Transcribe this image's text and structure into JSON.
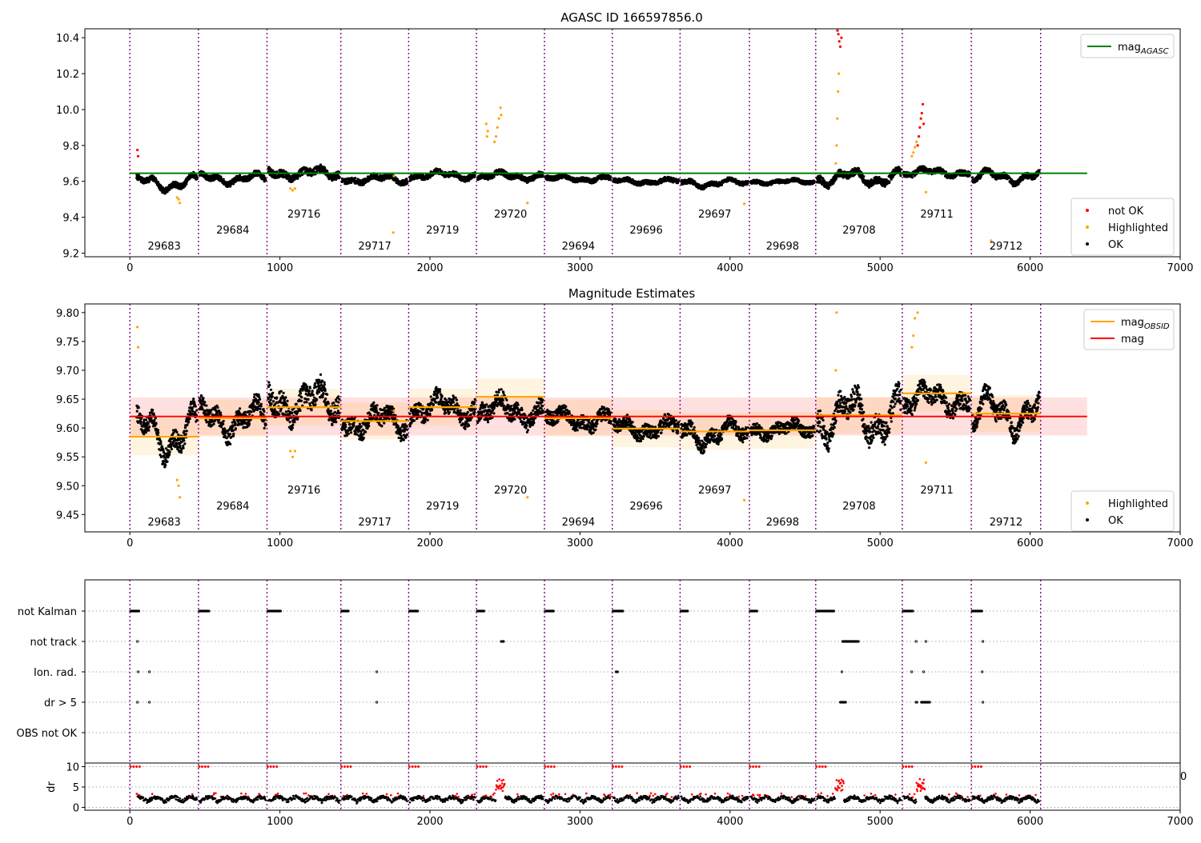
{
  "chart_data": [
    {
      "type": "scatter",
      "title": "AGASC ID 166597856.0",
      "xlim": [
        -300,
        7000
      ],
      "ylim": [
        9.18,
        10.45
      ],
      "xticks": [
        0,
        1000,
        2000,
        3000,
        4000,
        5000,
        6000,
        7000
      ],
      "yticks": [
        9.2,
        9.4,
        9.6,
        9.8,
        10.0,
        10.2,
        10.4
      ],
      "xlabel": "",
      "ylabel": "",
      "obs_boundaries": [
        0,
        457,
        914,
        1406,
        1858,
        2310,
        2763,
        3215,
        3667,
        4129,
        4571,
        5148,
        5608,
        6070
      ],
      "obs_labels": [
        {
          "text": "29683",
          "x": 229,
          "row": 0
        },
        {
          "text": "29684",
          "x": 686,
          "row": 1
        },
        {
          "text": "29716",
          "x": 1160,
          "row": 2
        },
        {
          "text": "29717",
          "x": 1632,
          "row": 0
        },
        {
          "text": "29719",
          "x": 2084,
          "row": 1
        },
        {
          "text": "29720",
          "x": 2537,
          "row": 2
        },
        {
          "text": "29694",
          "x": 2989,
          "row": 0
        },
        {
          "text": "29696",
          "x": 3441,
          "row": 1
        },
        {
          "text": "29697",
          "x": 3898,
          "row": 2
        },
        {
          "text": "29698",
          "x": 4350,
          "row": 0
        },
        {
          "text": "29708",
          "x": 4860,
          "row": 1
        },
        {
          "text": "29711",
          "x": 5378,
          "row": 2
        },
        {
          "text": "29712",
          "x": 5839,
          "row": 0
        }
      ],
      "mag_agasc": 9.645,
      "base_segments": [
        {
          "x0": 0,
          "x1": 457,
          "mag": 9.59,
          "amp": 0.03,
          "noise": 0.015
        },
        {
          "x0": 457,
          "x1": 914,
          "mag": 9.615,
          "amp": 0.02,
          "noise": 0.015
        },
        {
          "x0": 914,
          "x1": 1406,
          "mag": 9.645,
          "amp": 0.02,
          "noise": 0.02
        },
        {
          "x0": 1406,
          "x1": 1858,
          "mag": 9.612,
          "amp": 0.015,
          "noise": 0.015
        },
        {
          "x0": 1858,
          "x1": 2310,
          "mag": 9.635,
          "amp": 0.015,
          "noise": 0.015
        },
        {
          "x0": 2310,
          "x1": 2763,
          "mag": 9.63,
          "amp": 0.015,
          "noise": 0.015
        },
        {
          "x0": 2763,
          "x1": 3215,
          "mag": 9.615,
          "amp": 0.01,
          "noise": 0.012
        },
        {
          "x0": 3215,
          "x1": 3667,
          "mag": 9.6,
          "amp": 0.01,
          "noise": 0.012
        },
        {
          "x0": 3667,
          "x1": 4129,
          "mag": 9.59,
          "amp": 0.015,
          "noise": 0.012
        },
        {
          "x0": 4129,
          "x1": 4571,
          "mag": 9.597,
          "amp": 0.008,
          "noise": 0.01
        },
        {
          "x0": 4571,
          "x1": 5148,
          "mag": 9.62,
          "amp": 0.03,
          "noise": 0.02
        },
        {
          "x0": 5148,
          "x1": 5608,
          "mag": 9.65,
          "amp": 0.015,
          "noise": 0.015
        },
        {
          "x0": 5608,
          "x1": 6070,
          "mag": 9.625,
          "amp": 0.025,
          "noise": 0.015
        }
      ],
      "not_ok_points": [
        [
          50,
          9.775
        ],
        [
          55,
          9.74
        ],
        [
          4716,
          10.44
        ],
        [
          4722,
          10.42
        ],
        [
          4728,
          10.38
        ],
        [
          4735,
          10.35
        ],
        [
          4742,
          10.4
        ],
        [
          5250,
          9.8
        ],
        [
          5258,
          9.85
        ],
        [
          5265,
          9.9
        ],
        [
          5272,
          9.95
        ],
        [
          5278,
          9.98
        ],
        [
          5285,
          10.03
        ],
        [
          5290,
          9.92
        ]
      ],
      "highlighted_points": [
        [
          315,
          9.51
        ],
        [
          325,
          9.5
        ],
        [
          333,
          9.48
        ],
        [
          1070,
          9.56
        ],
        [
          1085,
          9.55
        ],
        [
          1100,
          9.56
        ],
        [
          1755,
          9.315
        ],
        [
          1760,
          9.63
        ],
        [
          2375,
          9.92
        ],
        [
          2380,
          9.85
        ],
        [
          2385,
          9.88
        ],
        [
          2430,
          9.82
        ],
        [
          2440,
          9.85
        ],
        [
          2450,
          9.9
        ],
        [
          2460,
          9.95
        ],
        [
          2470,
          10.01
        ],
        [
          2475,
          9.97
        ],
        [
          2650,
          9.48
        ],
        [
          4705,
          9.7
        ],
        [
          4710,
          9.8
        ],
        [
          4715,
          9.95
        ],
        [
          4720,
          10.1
        ],
        [
          4725,
          10.2
        ],
        [
          4095,
          9.475
        ],
        [
          5212,
          9.74
        ],
        [
          5222,
          9.76
        ],
        [
          5232,
          9.79
        ],
        [
          5243,
          9.82
        ],
        [
          5305,
          9.54
        ],
        [
          5740,
          9.27
        ]
      ],
      "legend": [
        {
          "label": "mag",
          "sub": "AGASC",
          "color": "#008000",
          "kind": "line"
        },
        {
          "label": "not OK",
          "color": "#ff0000",
          "kind": "dot"
        },
        {
          "label": "Highlighted",
          "color": "#ffa500",
          "kind": "dot"
        },
        {
          "label": "OK",
          "color": "#000000",
          "kind": "dot"
        }
      ]
    },
    {
      "type": "scatter",
      "title": "Magnitude Estimates",
      "xlim": [
        -300,
        7000
      ],
      "ylim": [
        9.42,
        9.815
      ],
      "xticks": [
        0,
        1000,
        2000,
        3000,
        4000,
        5000,
        6000,
        7000
      ],
      "yticks": [
        9.45,
        9.5,
        9.55,
        9.6,
        9.65,
        9.7,
        9.75,
        9.8
      ],
      "mag": 9.62,
      "mag_band": [
        9.587,
        9.653
      ],
      "mag_obsid": [
        9.585,
        9.617,
        9.636,
        9.612,
        9.636,
        9.654,
        9.617,
        9.599,
        9.594,
        9.596,
        9.622,
        9.66,
        9.625
      ],
      "mag_obsid_band": 0.032,
      "legend": [
        {
          "label": "mag",
          "sub": "OBSID",
          "color": "#ffa500",
          "kind": "line"
        },
        {
          "label": "mag",
          "color": "#ff0000",
          "kind": "line"
        },
        {
          "label": "Highlighted",
          "color": "#ffa500",
          "kind": "dot"
        },
        {
          "label": "OK",
          "color": "#000000",
          "kind": "dot"
        }
      ]
    },
    {
      "type": "scatter",
      "title": "",
      "xlim": [
        -300,
        7000
      ],
      "flag_labels": [
        "not Kalman",
        "not track",
        "Ion. rad.",
        "dr > 5",
        "OBS not OK"
      ],
      "flag_points": {
        "not Kalman": [
          [
            0,
            60
          ],
          [
            457,
            70
          ],
          [
            914,
            90
          ],
          [
            1406,
            50
          ],
          [
            1858,
            60
          ],
          [
            2310,
            50
          ],
          [
            2763,
            60
          ],
          [
            3215,
            70
          ],
          [
            3667,
            50
          ],
          [
            4129,
            50
          ],
          [
            4571,
            120
          ],
          [
            5148,
            70
          ],
          [
            5608,
            70
          ]
        ],
        "not track": [
          [
            45,
            5
          ],
          [
            2470,
            20
          ],
          [
            4745,
            110
          ],
          [
            5235,
            5
          ],
          [
            5300,
            5
          ],
          [
            5680,
            5
          ]
        ],
        "Ion. rad.": [
          [
            50,
            5
          ],
          [
            125,
            3
          ],
          [
            1640,
            2
          ],
          [
            3235,
            15
          ],
          [
            4740,
            5
          ],
          [
            5205,
            2
          ],
          [
            5285,
            2
          ],
          [
            5675,
            3
          ]
        ],
        "dr > 5": [
          [
            45,
            5
          ],
          [
            125,
            3
          ],
          [
            1640,
            2
          ],
          [
            4730,
            40
          ],
          [
            5235,
            10
          ],
          [
            5270,
            60
          ],
          [
            5680,
            3
          ]
        ],
        "OBS not OK": []
      },
      "dr_yticks": [
        0,
        5,
        10
      ],
      "dr_ylim": [
        -0.5,
        10.5
      ],
      "dr_ylabel": "dr",
      "dr_overflow_label": "0"
    }
  ]
}
